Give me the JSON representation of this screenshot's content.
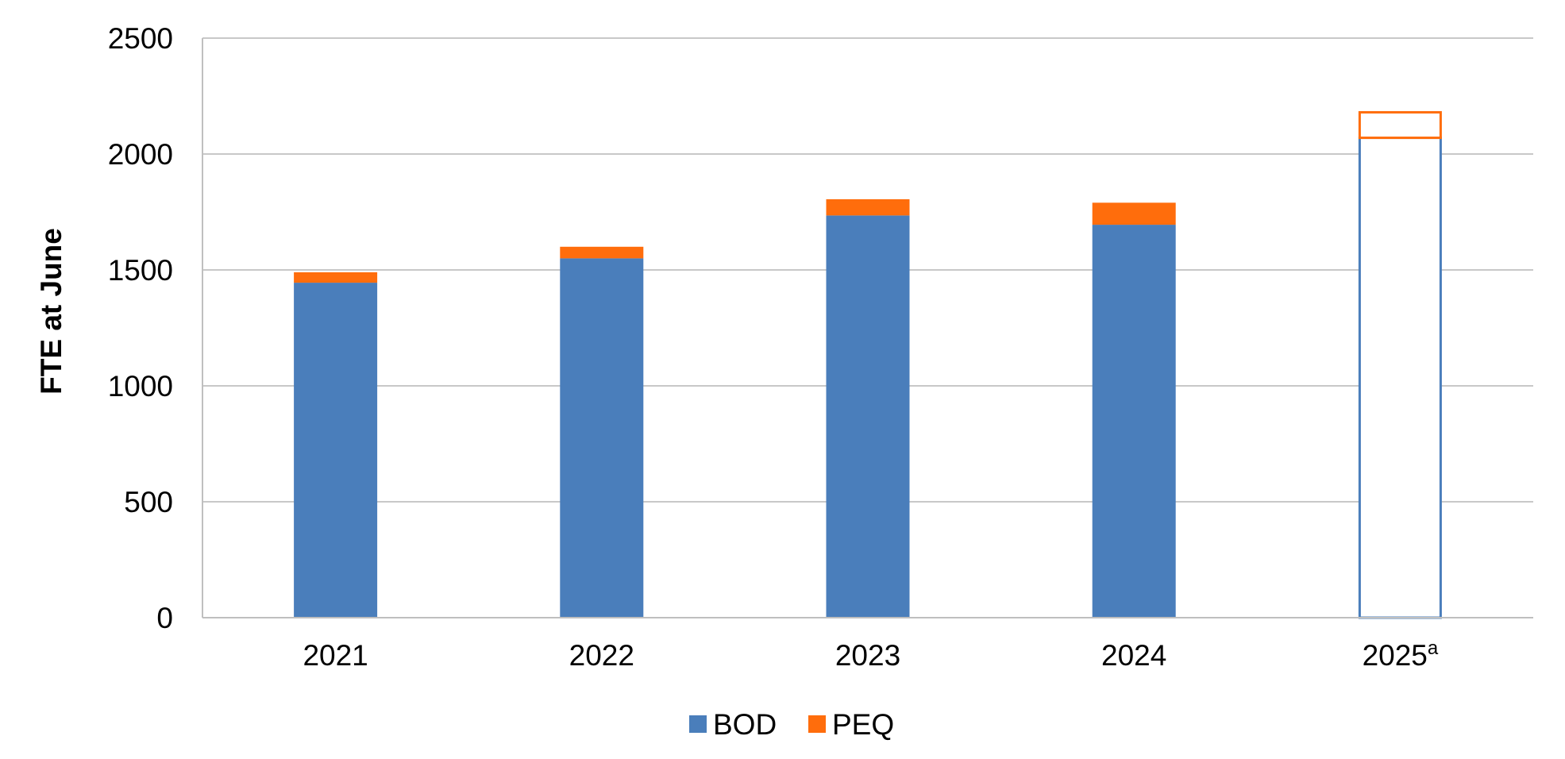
{
  "chart_data": {
    "type": "bar",
    "stacked": true,
    "categories": [
      "2021",
      "2022",
      "2023",
      "2024",
      "2025"
    ],
    "category_superscripts": [
      "",
      "",
      "",
      "",
      "a"
    ],
    "series": [
      {
        "name": "BOD",
        "values": [
          1445,
          1550,
          1735,
          1695,
          2070
        ],
        "color": "#4a7ebb"
      },
      {
        "name": "PEQ",
        "values": [
          45,
          50,
          70,
          95,
          110
        ],
        "color": "#ff6d0c"
      }
    ],
    "projected_categories": [
      "2025"
    ],
    "ylabel": "FTE at June",
    "xlabel": "",
    "ylim": [
      0,
      2500
    ],
    "yticks": [
      0,
      500,
      1000,
      1500,
      2000,
      2500
    ],
    "grid": true,
    "legend": "bottom-center"
  }
}
